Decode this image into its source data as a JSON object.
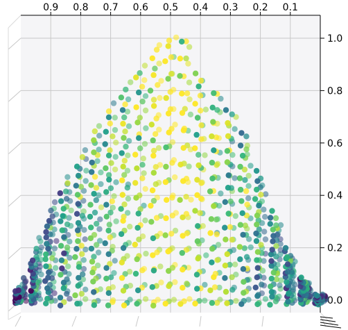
{
  "chart_data": {
    "type": "scatter",
    "projection": "3d",
    "view": "looking down the y-axis; x axis reversed along the top, z axis vertical on the right",
    "title": "",
    "xlabel": "",
    "ylabel": "",
    "zlabel": "",
    "grid": true,
    "legend": "none",
    "colormap": "viridis",
    "xlim": [
      0.0,
      1.0
    ],
    "zlim": [
      0.0,
      1.0
    ],
    "x_ticks": [
      0.9,
      0.8,
      0.7,
      0.6,
      0.5,
      0.4,
      0.3,
      0.2,
      0.1
    ],
    "x_tick_labels": [
      "0.9",
      "0.8",
      "0.7",
      "0.6",
      "0.5",
      "0.4",
      "0.3",
      "0.2",
      "0.1"
    ],
    "z_ticks": [
      1.0,
      0.8,
      0.6,
      0.4,
      0.2,
      0.0
    ],
    "z_tick_labels": [
      "1.0",
      "0.8",
      "0.6",
      "0.4",
      "0.2",
      "0.0"
    ],
    "envelope": {
      "x": [
        0.0,
        0.05,
        0.1,
        0.15,
        0.2,
        0.25,
        0.3,
        0.35,
        0.4,
        0.45,
        0.5,
        0.55,
        0.6,
        0.65,
        0.7,
        0.75,
        0.8,
        0.85,
        0.9,
        0.95,
        1.0
      ],
      "z_max": [
        0.02,
        0.08,
        0.18,
        0.32,
        0.47,
        0.63,
        0.72,
        0.79,
        0.85,
        1.0,
        1.0,
        0.96,
        0.88,
        0.81,
        0.73,
        0.65,
        0.55,
        0.45,
        0.35,
        0.2,
        0.05
      ]
    },
    "points_per_column": 15,
    "color_value_weighting": "brightest near the centre columns (x≈0.5), darker toward the edges"
  }
}
